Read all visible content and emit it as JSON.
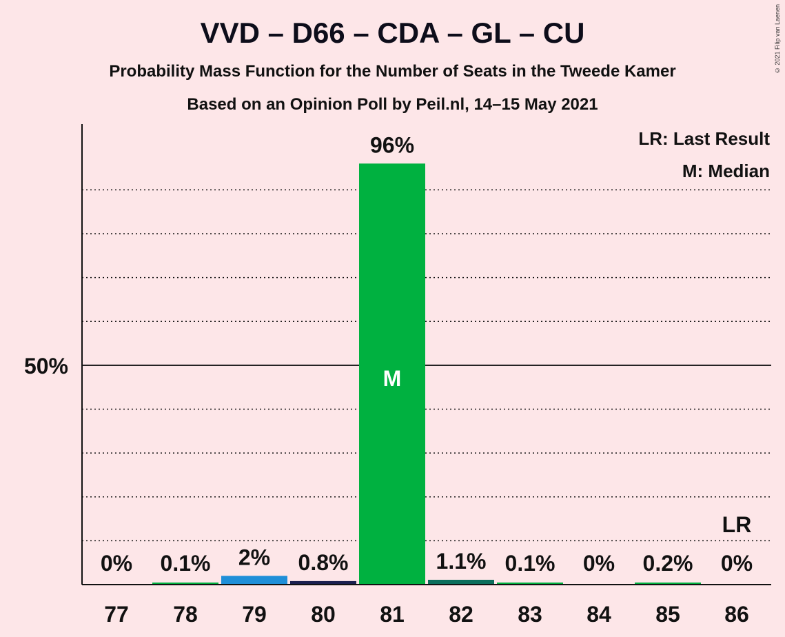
{
  "title": "VVD – D66 – CDA – GL – CU",
  "subtitle": "Probability Mass Function for the Number of Seats in the Tweede Kamer",
  "subtitle2": "Based on an Opinion Poll by Peil.nl, 14–15 May 2021",
  "copyright": "© 2021 Filip van Laenen",
  "legend": {
    "last_result": "LR: Last Result",
    "median": "M: Median"
  },
  "chart_data": {
    "type": "bar",
    "categories": [
      "77",
      "78",
      "79",
      "80",
      "81",
      "82",
      "83",
      "84",
      "85",
      "86"
    ],
    "values": [
      0,
      0.1,
      2,
      0.8,
      96,
      1.1,
      0.1,
      0,
      0.2,
      0
    ],
    "value_labels": [
      "0%",
      "0.1%",
      "2%",
      "0.8%",
      "96%",
      "1.1%",
      "0.1%",
      "0%",
      "0.2%",
      "0%"
    ],
    "bar_colors": [
      "#00b140",
      "#00b140",
      "#1f8fd8",
      "#1b1f4e",
      "#00b140",
      "#0b6e5c",
      "#00b140",
      "#00b140",
      "#00b140",
      "#00b140"
    ],
    "ylim": [
      0,
      105
    ],
    "yticks": [
      50
    ],
    "ytick_labels": [
      "50%"
    ],
    "gridlines": [
      10,
      20,
      30,
      40,
      60,
      70,
      80,
      90
    ],
    "median_category": "81",
    "median_marker": "M",
    "last_result_category": "86",
    "last_result_marker": "LR"
  }
}
